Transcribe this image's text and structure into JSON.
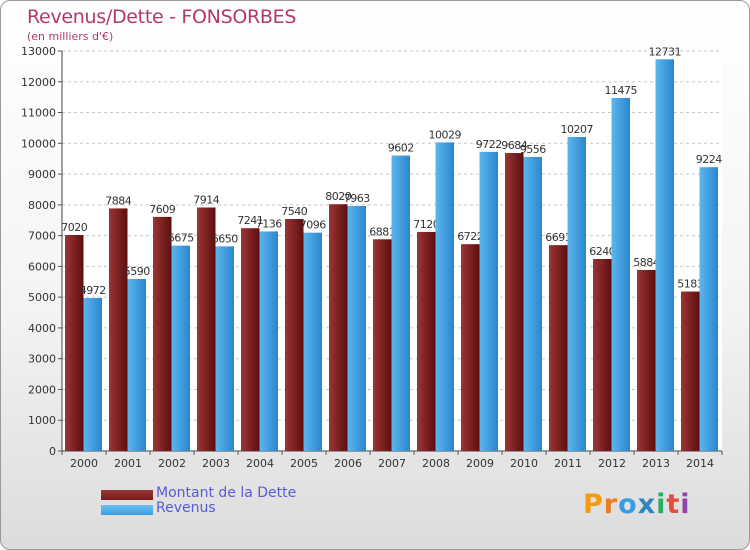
{
  "chart_data": {
    "type": "bar",
    "title": "Revenus/Dette - FONSORBES",
    "subtitle": "(en milliers d'€)",
    "categories": [
      "2000",
      "2001",
      "2002",
      "2003",
      "2004",
      "2005",
      "2006",
      "2007",
      "2008",
      "2009",
      "2010",
      "2011",
      "2012",
      "2013",
      "2014"
    ],
    "series": [
      {
        "name": "Montant de la Dette",
        "color": "#7a1a1a",
        "values": [
          7020,
          7884,
          7609,
          7914,
          7241,
          7540,
          8020,
          6881,
          7120,
          6722,
          9684,
          6691,
          6240,
          5884,
          5183
        ],
        "labels": [
          "7020",
          "7884",
          "7609",
          "7914",
          "7241",
          "7540",
          "8020",
          "6881",
          "7120",
          "6722",
          "9684",
          "6691",
          "6240",
          "5884",
          "5183"
        ]
      },
      {
        "name": "Revenus",
        "color": "#3c9ce0",
        "values": [
          4972,
          5590,
          6675,
          6650,
          7136,
          7096,
          7963,
          9602,
          10029,
          9722,
          9556,
          10207,
          11475,
          12731,
          9224
        ],
        "labels": [
          "4972",
          "5590",
          "6675",
          "6650",
          "7136",
          "7096",
          "7963",
          "9602",
          "10029",
          "9722",
          "9556",
          "10207",
          "11475",
          "12731",
          "9224"
        ]
      }
    ],
    "yticks": [
      "0",
      "1000",
      "2000",
      "3000",
      "4000",
      "5000",
      "6000",
      "7000",
      "8000",
      "9000",
      "10000",
      "11000",
      "12000",
      "13000"
    ],
    "ylim": [
      0,
      13000
    ],
    "grid": true,
    "legend_position": "bottom-left"
  },
  "logo": {
    "letters": [
      "P",
      "r",
      "o",
      "x",
      "i",
      "t",
      "i"
    ],
    "colors": [
      "#f39c12",
      "#e67e22",
      "#3c9ce0",
      "#2e86c1",
      "#27ae60",
      "#e74c3c",
      "#8e44ad"
    ]
  }
}
